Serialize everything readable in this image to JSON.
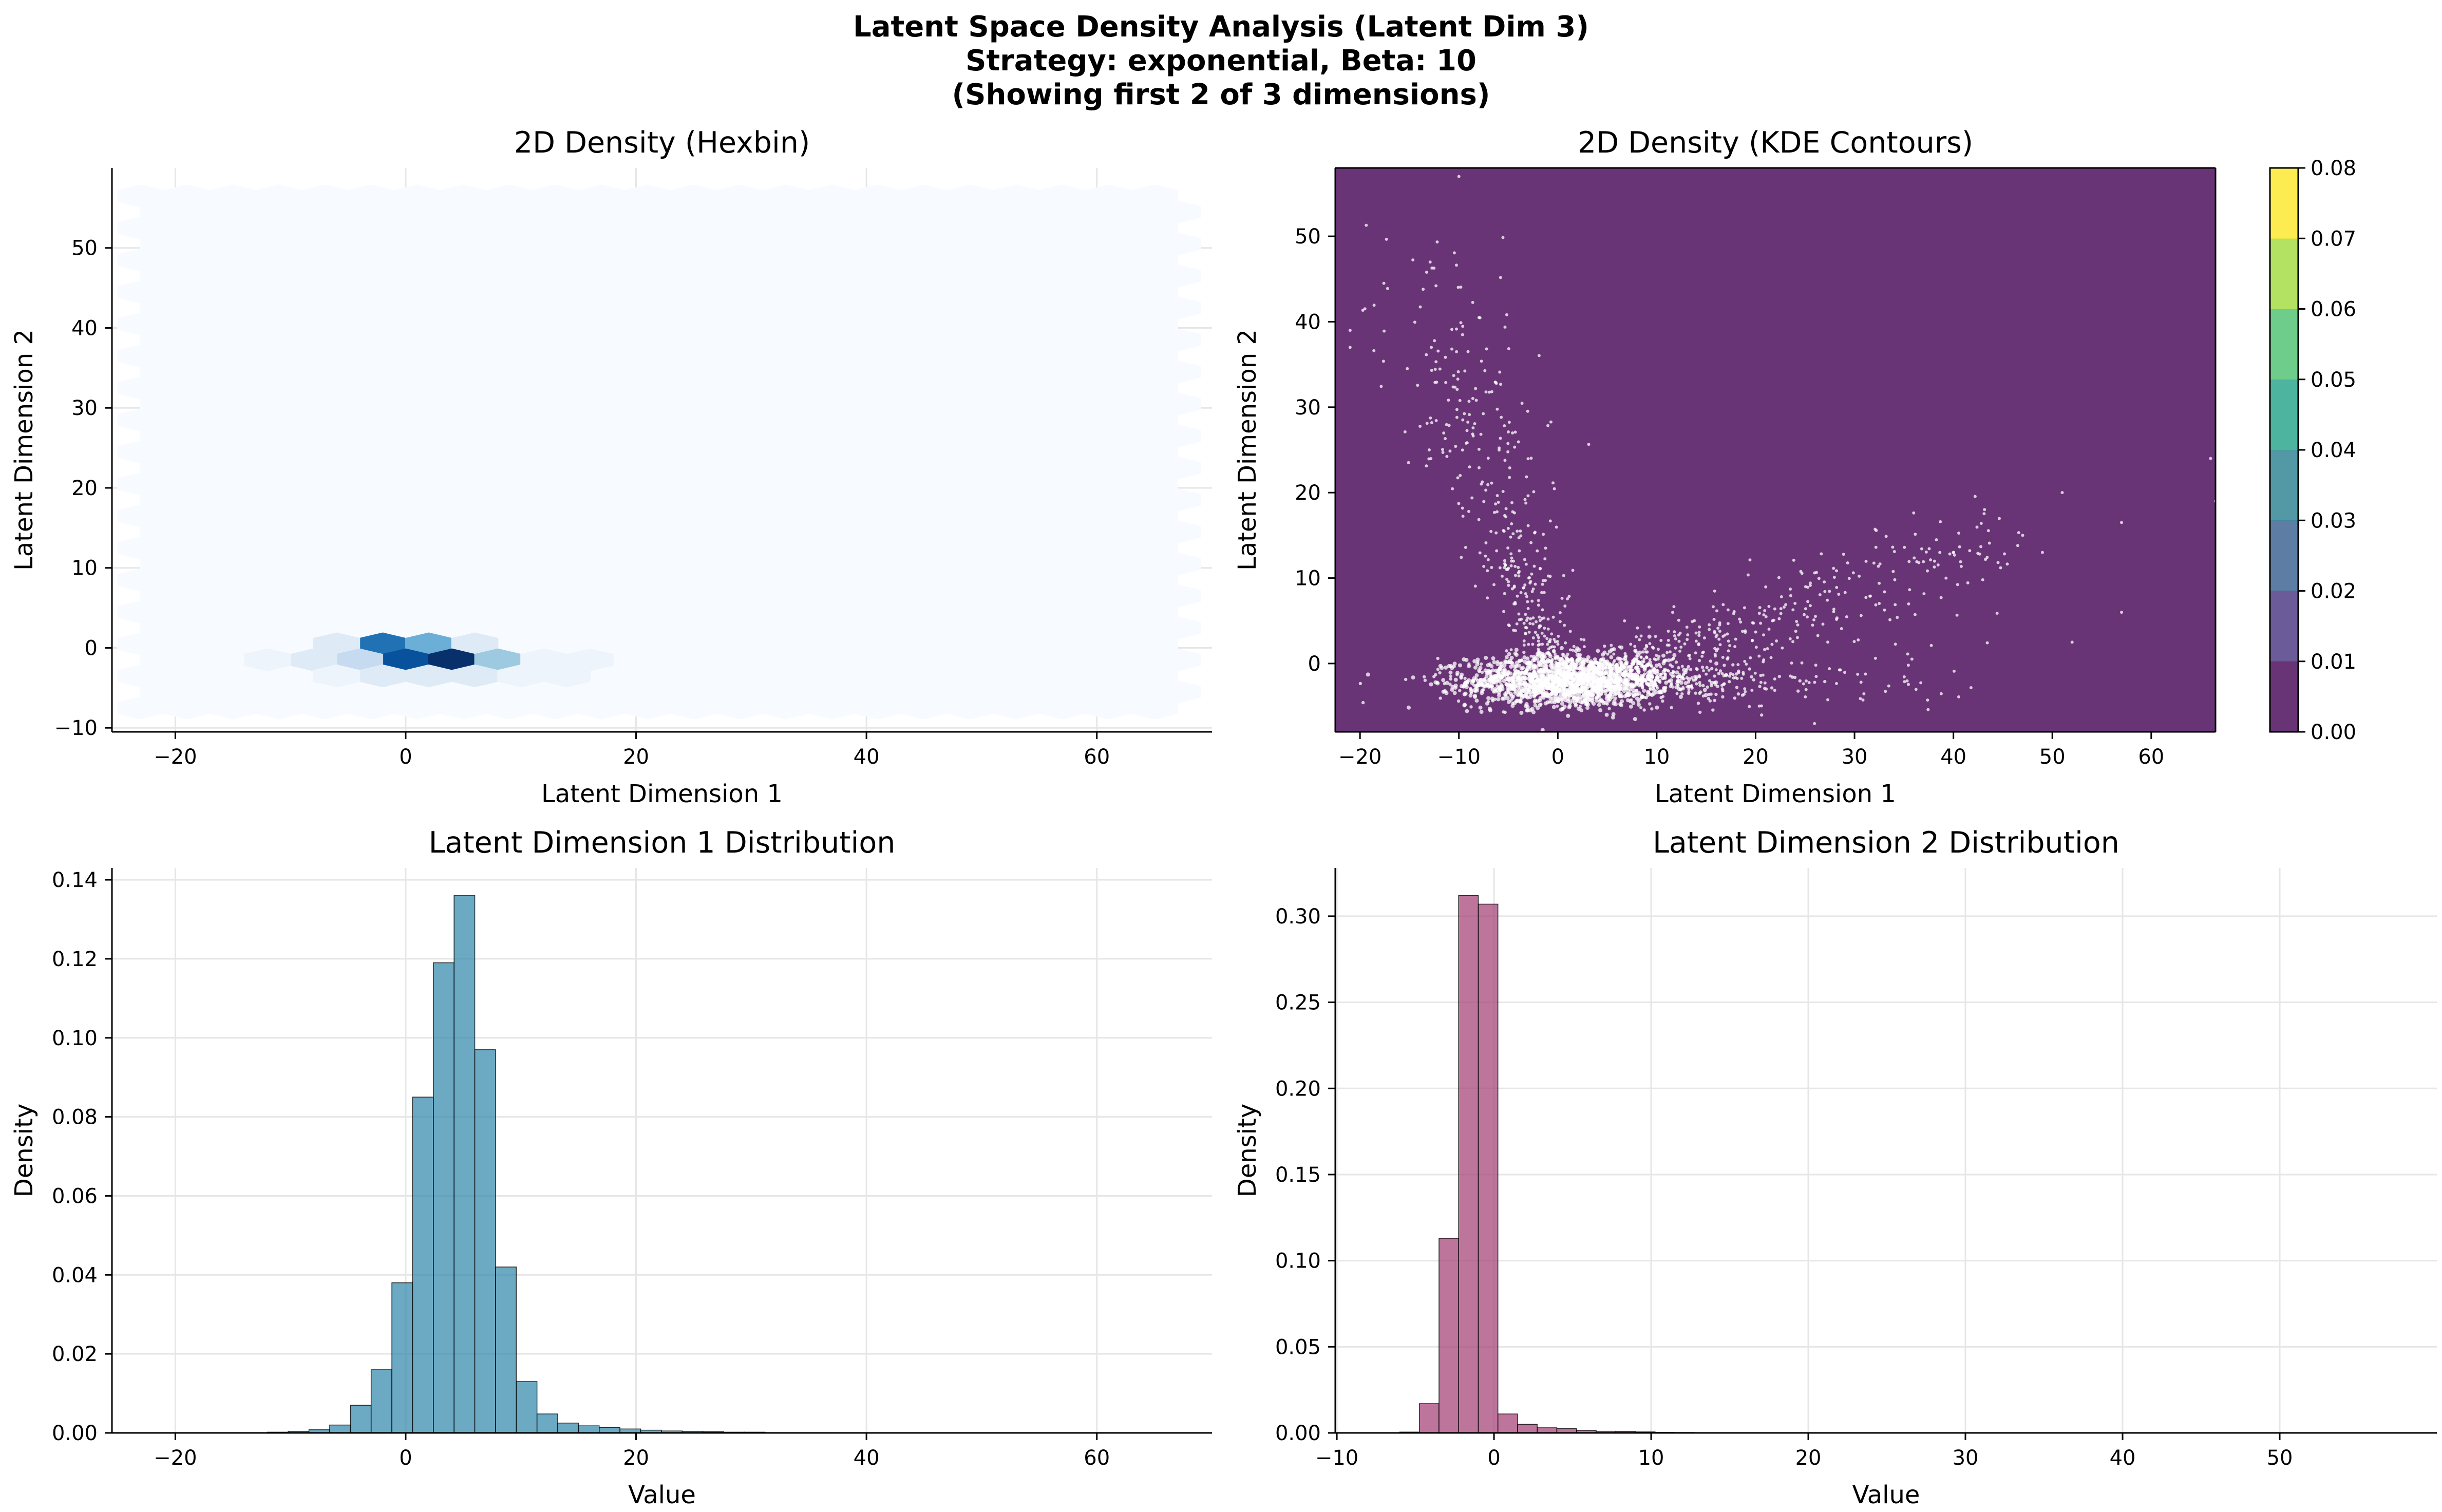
{
  "figure": {
    "title_line1": "Latent Space Density Analysis (Latent Dim 3)",
    "title_line2": "Strategy: exponential, Beta: 10",
    "title_line3": "(Showing first 2 of 3 dimensions)"
  },
  "colors": {
    "hexbin_map": [
      "#f7fbff",
      "#deebf7",
      "#c6dbef",
      "#9ecae1",
      "#6baed6",
      "#4292c6",
      "#2171b5",
      "#08519c",
      "#08306b"
    ],
    "kde_background": "#440154",
    "kde_scatter": "#ffffff",
    "viridis": [
      "#440154",
      "#46327e",
      "#365c8d",
      "#277f8e",
      "#1fa187",
      "#4ac16d",
      "#a0da39",
      "#fde725"
    ],
    "hist1_fill": "#2e86ab",
    "hist2_fill": "#a23b72",
    "grid": "#e6e6e6"
  },
  "chart_data": [
    {
      "id": "hexbin",
      "type": "heatmap",
      "title": "2D Density (Hexbin)",
      "xlabel": "Latent Dimension 1",
      "ylabel": "Latent Dimension 2",
      "xlim": [
        -25.5,
        70
      ],
      "ylim": [
        -10.5,
        60
      ],
      "xticks": [
        -20,
        0,
        20,
        40,
        60
      ],
      "yticks": [
        -10,
        0,
        10,
        20,
        30,
        40,
        50
      ],
      "grid": true,
      "extent_x": [
        -23,
        67
      ],
      "extent_y": [
        -8,
        58
      ],
      "cells": [
        {
          "x": -2,
          "y": 0.5,
          "level": 6
        },
        {
          "x": 2,
          "y": 0.5,
          "level": 4
        },
        {
          "x": 6,
          "y": 0.5,
          "level": 1
        },
        {
          "x": -6,
          "y": 0.5,
          "level": 0.5
        },
        {
          "x": 0,
          "y": -1.5,
          "level": 7
        },
        {
          "x": 4,
          "y": -1.5,
          "level": 9
        },
        {
          "x": -4,
          "y": -1.5,
          "level": 2
        },
        {
          "x": 8,
          "y": -1.5,
          "level": 2.5
        },
        {
          "x": -8,
          "y": -1.5,
          "level": 0.7
        },
        {
          "x": 12,
          "y": -1.5,
          "level": 0.4
        },
        {
          "x": -12,
          "y": -1.5,
          "level": 0.2
        },
        {
          "x": 16,
          "y": -1.5,
          "level": 0.15
        },
        {
          "x": -2,
          "y": -3.5,
          "level": 1.3
        },
        {
          "x": 2,
          "y": -3.5,
          "level": 1.3
        },
        {
          "x": 6,
          "y": -3.5,
          "level": 0.6
        },
        {
          "x": -6,
          "y": -3.5,
          "level": 0.3
        },
        {
          "x": 10,
          "y": -3.5,
          "level": 0.3
        },
        {
          "x": 14,
          "y": -3.5,
          "level": 0.15
        }
      ]
    },
    {
      "id": "kde",
      "type": "scatter",
      "title": "2D Density (KDE Contours)",
      "xlabel": "Latent Dimension 1",
      "ylabel": "Latent Dimension 2",
      "xlim": [
        -22.5,
        66.5
      ],
      "ylim": [
        -8,
        58
      ],
      "xticks": [
        -20,
        -10,
        0,
        10,
        20,
        30,
        40,
        50,
        60
      ],
      "yticks": [
        0,
        10,
        20,
        30,
        40,
        50
      ],
      "grid": false,
      "colorbar": {
        "ticks": [
          "0.00",
          "0.01",
          "0.02",
          "0.03",
          "0.04",
          "0.05",
          "0.06",
          "0.07",
          "0.08"
        ],
        "range": [
          0,
          0.08
        ]
      },
      "core": {
        "x": 1,
        "y": -2,
        "sx": 5,
        "sy": 1.5
      },
      "arms": [
        {
          "x0": -1,
          "y0": 0,
          "x1": -13,
          "y1": 45,
          "spread": 2.5
        },
        {
          "x0": 6,
          "y0": -1,
          "x1": 44,
          "y1": 14,
          "spread": 2.5
        },
        {
          "x0": 4,
          "y0": -2,
          "x1": 40,
          "y1": -2,
          "spread": 1.5
        }
      ],
      "outliers": [
        {
          "x": -21,
          "y": 37
        },
        {
          "x": -21,
          "y": 39
        },
        {
          "x": -10,
          "y": 57
        },
        {
          "x": -13,
          "y": 25
        },
        {
          "x": 51,
          "y": 20
        },
        {
          "x": 66,
          "y": 24
        },
        {
          "x": 66.5,
          "y": 19
        },
        {
          "x": 57,
          "y": 16.5
        },
        {
          "x": 57,
          "y": 6
        },
        {
          "x": 52,
          "y": 2.5
        },
        {
          "x": 49,
          "y": 13
        },
        {
          "x": 47,
          "y": 15
        }
      ]
    },
    {
      "id": "hist1",
      "type": "bar",
      "title": "Latent Dimension 1 Distribution",
      "xlabel": "Value",
      "ylabel": "Density",
      "xlim": [
        -25.5,
        70
      ],
      "ylim": [
        0,
        0.143
      ],
      "xticks": [
        -20,
        0,
        20,
        40,
        60
      ],
      "yticks": [
        0.0,
        0.02,
        0.04,
        0.06,
        0.08,
        0.1,
        0.12,
        0.14
      ],
      "ytick_labels": [
        "0.00",
        "0.02",
        "0.04",
        "0.06",
        "0.08",
        "0.10",
        "0.12",
        "0.14"
      ],
      "grid": true,
      "bin_start": -12,
      "bin_width": 1.8,
      "values": [
        0.0002,
        0.0004,
        0.0008,
        0.002,
        0.007,
        0.016,
        0.038,
        0.085,
        0.119,
        0.136,
        0.097,
        0.042,
        0.013,
        0.0048,
        0.0025,
        0.0018,
        0.0014,
        0.001,
        0.0007,
        0.0005,
        0.0004,
        0.0003,
        0.0002,
        0.0002,
        0.0001,
        0.0001,
        0.0001
      ]
    },
    {
      "id": "hist2",
      "type": "bar",
      "title": "Latent Dimension 2 Distribution",
      "xlabel": "Value",
      "ylabel": "Density",
      "xlim": [
        -10.1,
        60
      ],
      "ylim": [
        0,
        0.328
      ],
      "xticks": [
        -10,
        0,
        10,
        20,
        30,
        40,
        50
      ],
      "yticks": [
        0.0,
        0.05,
        0.1,
        0.15,
        0.2,
        0.25,
        0.3
      ],
      "ytick_labels": [
        "0.00",
        "0.05",
        "0.10",
        "0.15",
        "0.20",
        "0.25",
        "0.30"
      ],
      "grid": true,
      "bin_start": -6,
      "bin_width": 1.25,
      "values": [
        0.0005,
        0.017,
        0.113,
        0.312,
        0.307,
        0.011,
        0.005,
        0.003,
        0.0025,
        0.0015,
        0.001,
        0.0008,
        0.0006,
        0.0004,
        0.0003,
        0.0002,
        0.0002,
        0.0001,
        0.0001
      ]
    }
  ]
}
